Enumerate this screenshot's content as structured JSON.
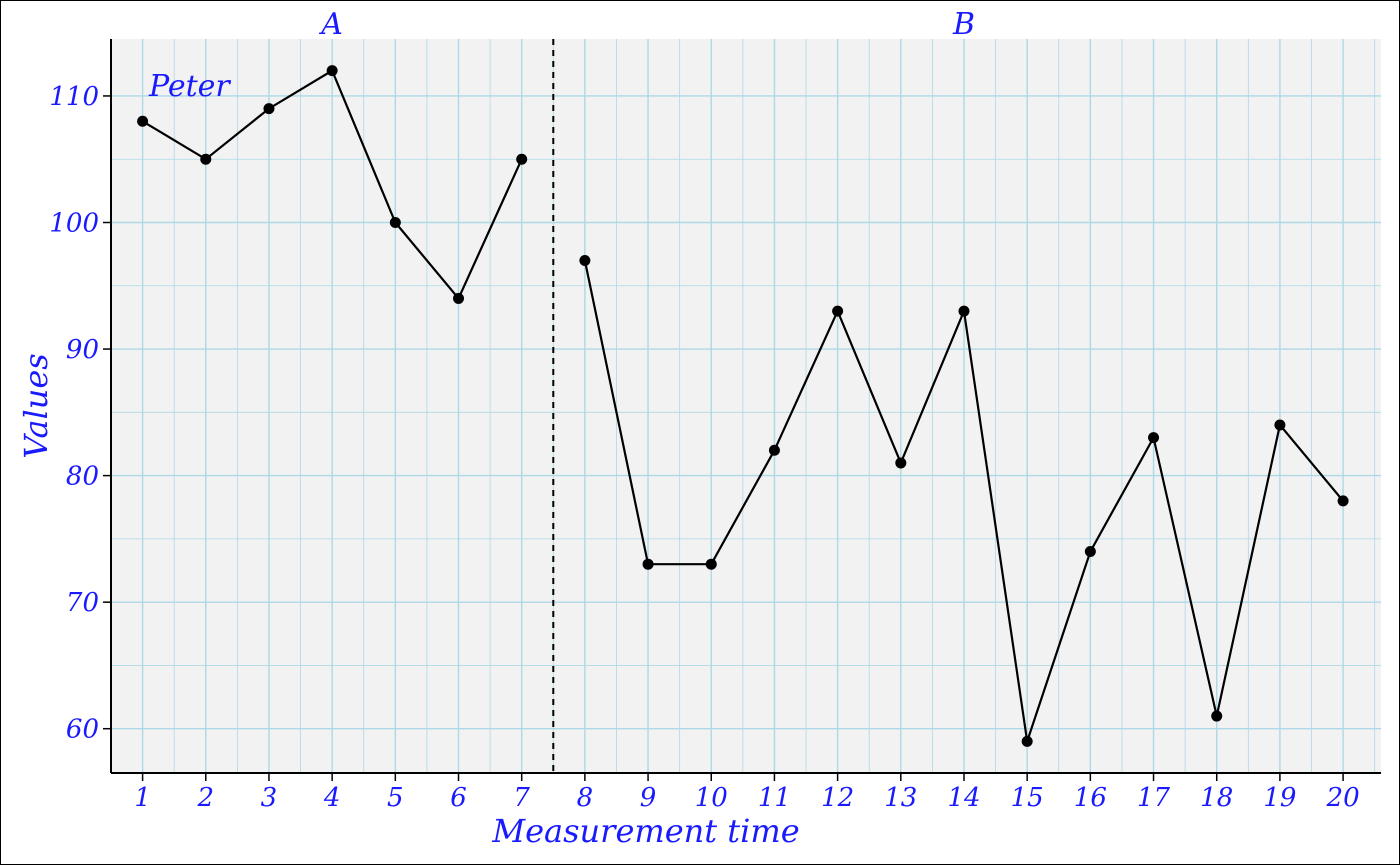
{
  "chart_data": {
    "type": "line",
    "title": "",
    "case_label": "Peter",
    "xlabel": "Measurement time",
    "ylabel": "Values",
    "phases": [
      {
        "label": "A",
        "x": [
          1,
          2,
          3,
          4,
          5,
          6,
          7
        ]
      },
      {
        "label": "B",
        "x": [
          8,
          9,
          10,
          11,
          12,
          13,
          14,
          15,
          16,
          17,
          18,
          19,
          20
        ]
      }
    ],
    "phase_change_after": 7.5,
    "x": [
      1,
      2,
      3,
      4,
      5,
      6,
      7,
      8,
      9,
      10,
      11,
      12,
      13,
      14,
      15,
      16,
      17,
      18,
      19,
      20
    ],
    "values": [
      108,
      105,
      109,
      112,
      100,
      94,
      105,
      97,
      73,
      73,
      82,
      93,
      81,
      93,
      59,
      74,
      83,
      61,
      84,
      78
    ],
    "xlim": [
      0.5,
      20.6
    ],
    "ylim": [
      56.5,
      114.5
    ],
    "x_ticks": [
      1,
      2,
      3,
      4,
      5,
      6,
      7,
      8,
      9,
      10,
      11,
      12,
      13,
      14,
      15,
      16,
      17,
      18,
      19,
      20
    ],
    "y_ticks": [
      60,
      70,
      80,
      90,
      100,
      110
    ],
    "grid": true,
    "colors": {
      "labels": "#1a1aff",
      "panel": "#f2f2f2",
      "grid": "#add8e6",
      "line": "#000000",
      "points": "#000000",
      "phase_line": "#000000"
    }
  }
}
